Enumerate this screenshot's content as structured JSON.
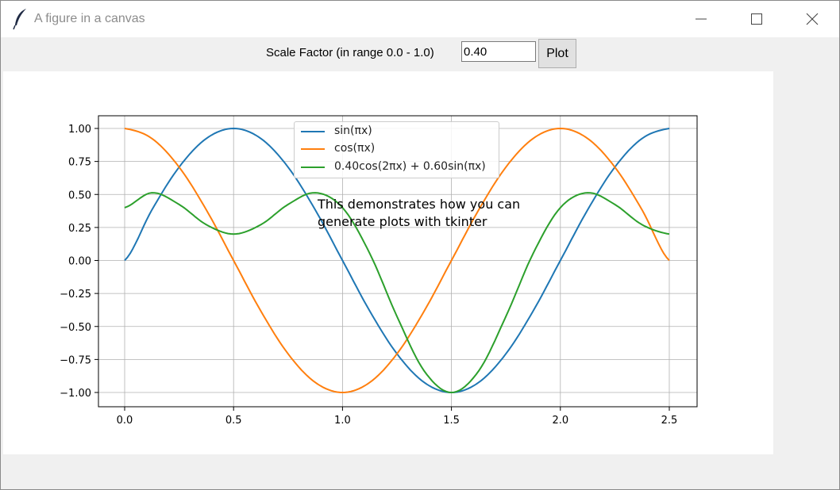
{
  "window": {
    "title": "A figure in a canvas",
    "app_icon": "feather-icon",
    "controls": [
      "minimize-icon",
      "maximize-icon",
      "close-icon"
    ]
  },
  "toolbar": {
    "label": "Scale Factor (in range 0.0 - 1.0)",
    "input_value": "0.40",
    "button_label": "Plot"
  },
  "annotation": [
    "This demonstrates how you can",
    "generate plots with tkinter"
  ],
  "chart_data": {
    "type": "line",
    "title": "",
    "xlabel": "",
    "ylabel": "",
    "xlim": [
      0,
      2.5
    ],
    "ylim": [
      -1.0,
      1.0
    ],
    "xticks": [
      "0.0",
      "0.5",
      "1.0",
      "1.5",
      "2.0",
      "2.5"
    ],
    "yticks": [
      "1.00",
      "0.75",
      "0.50",
      "0.25",
      "0.00",
      "−0.25",
      "−0.50",
      "−0.75",
      "−1.00"
    ],
    "grid": true,
    "legend_position": "top-center",
    "x": [
      0.0,
      0.125,
      0.25,
      0.375,
      0.5,
      0.625,
      0.75,
      0.875,
      1.0,
      1.125,
      1.25,
      1.375,
      1.5,
      1.625,
      1.75,
      1.875,
      2.0,
      2.125,
      2.25,
      2.375,
      2.5
    ],
    "series": [
      {
        "name": "sin(πx)",
        "color": "#1f77b4",
        "values": [
          0.0,
          0.383,
          0.707,
          0.924,
          1.0,
          0.924,
          0.707,
          0.383,
          0.0,
          -0.383,
          -0.707,
          -0.924,
          -1.0,
          -0.924,
          -0.707,
          -0.383,
          0.0,
          0.383,
          0.707,
          0.924,
          1.0
        ]
      },
      {
        "name": "cos(πx)",
        "color": "#ff7f0e",
        "values": [
          1.0,
          0.924,
          0.707,
          0.383,
          0.0,
          -0.383,
          -0.707,
          -0.924,
          -1.0,
          -0.924,
          -0.707,
          -0.383,
          0.0,
          0.383,
          0.707,
          0.924,
          1.0,
          0.924,
          0.707,
          0.383,
          0.0
        ]
      },
      {
        "name": "0.40cos(2πx) + 0.60sin(πx)",
        "color": "#2ca02c",
        "values": [
          0.4,
          0.513,
          0.424,
          0.271,
          0.2,
          0.271,
          0.424,
          0.513,
          0.4,
          0.053,
          -0.424,
          -0.837,
          -1.0,
          -0.837,
          -0.424,
          0.053,
          0.4,
          0.513,
          0.424,
          0.271,
          0.2
        ]
      }
    ]
  }
}
